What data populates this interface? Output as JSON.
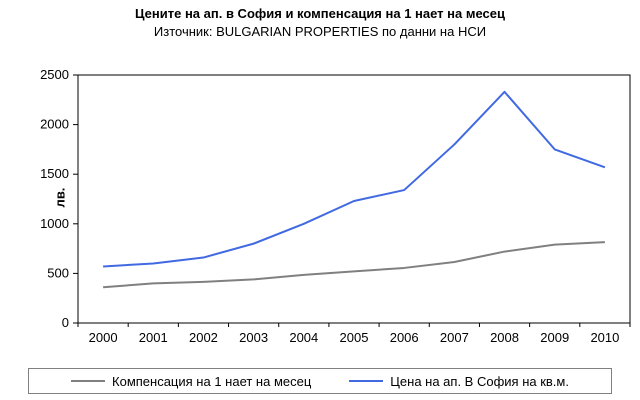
{
  "title": "Цените на ап. в София и компенсация на 1 нает на месец",
  "subtitle": "Източник: BULGARIAN PROPERTIES по данни на НСИ",
  "chart_data": {
    "type": "line",
    "x": [
      "2000",
      "2001",
      "2002",
      "2003",
      "2004",
      "2005",
      "2006",
      "2007",
      "2008",
      "2009",
      "2010"
    ],
    "series": [
      {
        "name": "Компенсация на 1 нает на месец",
        "color": "#808080",
        "values": [
          360,
          400,
          415,
          440,
          485,
          520,
          555,
          615,
          720,
          790,
          815
        ]
      },
      {
        "name": "Цена на ап. В София на кв.м.",
        "color": "#4169E1",
        "values": [
          570,
          600,
          660,
          800,
          1000,
          1230,
          1340,
          1800,
          2330,
          1750,
          1570
        ]
      }
    ],
    "ylabel": "лв.",
    "xlabel": "",
    "ylim": [
      0,
      2500
    ],
    "ytick_step": 500,
    "grid": false,
    "legend_position": "bottom",
    "axis_color": "#000000",
    "plot_background": "#ffffff"
  }
}
